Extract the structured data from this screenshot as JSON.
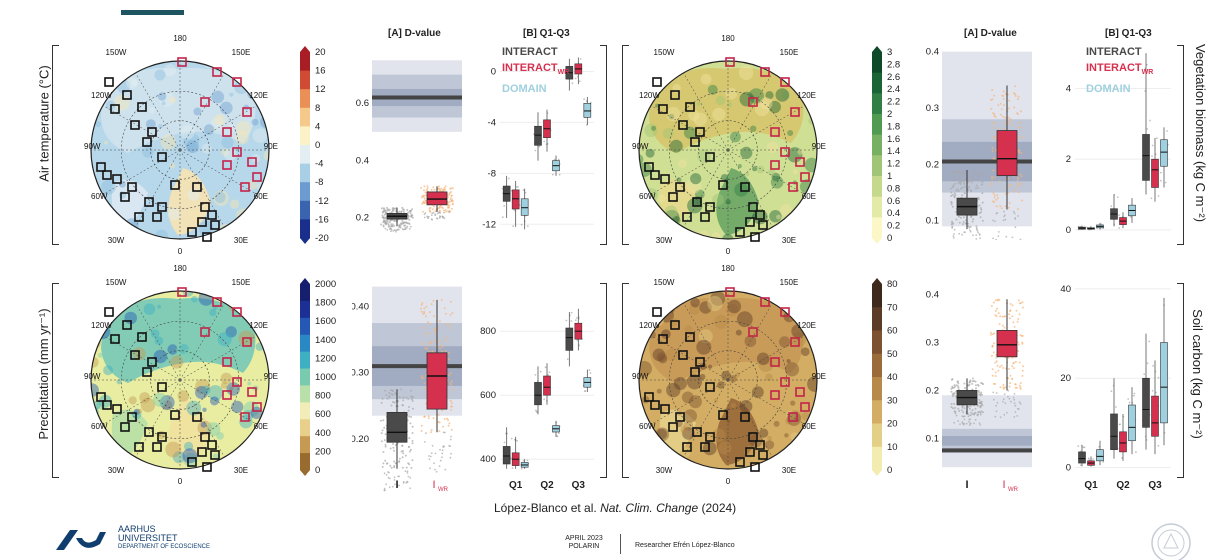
{
  "citation": {
    "authors": "López-Blanco et al.",
    "journal": "Nat. Clim. Change",
    "year": "(2024)"
  },
  "footer": {
    "org_line1": "AARHUS",
    "org_line2": "UNIVERSITET",
    "org_line3": "DEPARTMENT OF ECOSCIENCE",
    "date": "APRIL 2023",
    "event": "POLARIN",
    "presenter": "Researcher Efrén López-Blanco"
  },
  "map_labels": {
    "deg180": "180",
    "deg0": "0",
    "w150": "150W",
    "e150": "150E",
    "w120": "120W",
    "e120": "120E",
    "w90": "90W",
    "e90": "90E",
    "w60": "60W",
    "e60": "60E",
    "w30": "30W",
    "e30": "30E"
  },
  "panel_titles": {
    "dvalue": "[A] D-value",
    "q": "[B] Q1-Q3"
  },
  "legend": {
    "interact": "INTERACT",
    "interact_wr_main": "INTERACT",
    "interact_wr_sub": "WR",
    "domain": "DOMAIN"
  },
  "x_labels": {
    "I": "I",
    "Iwr_main": "I",
    "Iwr_sub": "WR",
    "q1": "Q1",
    "q2": "Q2",
    "q3": "Q3"
  },
  "colors": {
    "interact": "#4a4a4a",
    "interact_wr": "#d6304f",
    "domain": "#9fd0e0",
    "scatter_gray": "#a8a8a8",
    "scatter_orange": "#f6b57a",
    "band_light": "#d9dde8",
    "band_mid": "#b7bfd1",
    "band_dark": "#9aa4bc",
    "line_dark": "#444444"
  },
  "chart_data": [
    {
      "id": "air-temp-colorbar",
      "type": "colorbar",
      "row_label": "Air temperature (°C)",
      "ticks": [
        "20",
        "16",
        "12",
        "8",
        "4",
        "0",
        "-4",
        "-8",
        "-12",
        "-16",
        "-20"
      ],
      "range": [
        -20,
        20
      ],
      "colors": [
        "#1a2f8c",
        "#3a63b0",
        "#6b9bd0",
        "#a9cfe6",
        "#e3eef2",
        "#fbf3c7",
        "#f4c98a",
        "#ea8f55",
        "#d04b34",
        "#a81e24"
      ]
    },
    {
      "id": "air-temp-dvalue",
      "type": "box",
      "ylim": [
        0.15,
        0.8
      ],
      "yticks": [
        "0.6",
        "0.4",
        "0.2"
      ],
      "ytick_values": [
        0.6,
        0.4,
        0.2
      ],
      "bands": [
        [
          0.5,
          0.75
        ],
        [
          0.55,
          0.7
        ],
        [
          0.59,
          0.65
        ]
      ],
      "line": 0.62,
      "boxes": [
        {
          "label": "I",
          "min": 0.17,
          "q1": 0.195,
          "median": 0.205,
          "q3": 0.215,
          "max": 0.235
        },
        {
          "label": "IWR",
          "min": 0.22,
          "q1": 0.245,
          "median": 0.265,
          "q3": 0.29,
          "max": 0.31
        }
      ]
    },
    {
      "id": "air-temp-q",
      "type": "box",
      "ylim": [
        -13,
        2
      ],
      "yticks": [
        "0",
        "-4",
        "-8",
        "-12"
      ],
      "ytick_values": [
        0,
        -4,
        -8,
        -12
      ],
      "boxes": [
        {
          "group": "Q1",
          "series": "INTERACT",
          "min": -11.5,
          "q1": -10.2,
          "median": -9.6,
          "q3": -9.0,
          "max": -8.2
        },
        {
          "group": "Q1",
          "series": "INTERACT_WR",
          "min": -12.2,
          "q1": -10.8,
          "median": -10.0,
          "q3": -9.3,
          "max": -8.6
        },
        {
          "group": "Q1",
          "series": "DOMAIN",
          "min": -12.4,
          "q1": -11.3,
          "median": -10.7,
          "q3": -10.0,
          "max": -9.2
        },
        {
          "group": "Q2",
          "series": "INTERACT",
          "min": -7.0,
          "q1": -5.8,
          "median": -5.0,
          "q3": -4.3,
          "max": -3.2
        },
        {
          "group": "Q2",
          "series": "INTERACT_WR",
          "min": -6.3,
          "q1": -5.2,
          "median": -4.5,
          "q3": -3.8,
          "max": -3.0
        },
        {
          "group": "Q2",
          "series": "DOMAIN",
          "min": -8.2,
          "q1": -7.8,
          "median": -7.4,
          "q3": -7.0,
          "max": -6.6
        },
        {
          "group": "Q3",
          "series": "INTERACT",
          "min": -1.5,
          "q1": -0.6,
          "median": -0.1,
          "q3": 0.4,
          "max": 1.0
        },
        {
          "group": "Q3",
          "series": "INTERACT_WR",
          "min": -1.0,
          "q1": -0.2,
          "median": 0.2,
          "q3": 0.6,
          "max": 1.1
        },
        {
          "group": "Q3",
          "series": "DOMAIN",
          "min": -4.2,
          "q1": -3.6,
          "median": -3.1,
          "q3": -2.5,
          "max": -2.0
        }
      ]
    },
    {
      "id": "vegetation-colorbar",
      "type": "colorbar",
      "row_label": "Vegetation biomass (kg C m⁻²)",
      "ticks": [
        "3",
        "2.8",
        "2.6",
        "2.4",
        "2.2",
        "2",
        "1.8",
        "1.6",
        "1.4",
        "1.2",
        "1",
        "0.8",
        "0.6",
        "0.4",
        "0.2",
        "0"
      ],
      "range": [
        0,
        3
      ],
      "colors": [
        "#fbf7c6",
        "#e3e9a6",
        "#c4d98b",
        "#9fc676",
        "#77b062",
        "#519a52",
        "#317f44",
        "#1a6436",
        "#0e4a29"
      ]
    },
    {
      "id": "vegetation-dvalue",
      "type": "box",
      "ylim": [
        0.08,
        0.41
      ],
      "yticks": [
        "0.4",
        "0.3",
        "0.2",
        "0.1"
      ],
      "ytick_values": [
        0.4,
        0.3,
        0.2,
        0.1
      ],
      "bands": [
        [
          0.09,
          0.4
        ],
        [
          0.15,
          0.28
        ],
        [
          0.17,
          0.24
        ]
      ],
      "line": 0.205,
      "boxes": [
        {
          "label": "I",
          "min": 0.085,
          "q1": 0.11,
          "median": 0.125,
          "q3": 0.14,
          "max": 0.19
        },
        {
          "label": "IWR",
          "min": 0.12,
          "q1": 0.18,
          "median": 0.21,
          "q3": 0.26,
          "max": 0.34
        }
      ]
    },
    {
      "id": "vegetation-q",
      "type": "box",
      "ylim": [
        -0.2,
        5.2
      ],
      "yticks": [
        "4",
        "2",
        "0"
      ],
      "ytick_values": [
        4,
        2,
        0
      ],
      "boxes": [
        {
          "group": "Q1",
          "series": "INTERACT",
          "min": 0.0,
          "q1": 0.02,
          "median": 0.05,
          "q3": 0.08,
          "max": 0.12
        },
        {
          "group": "Q1",
          "series": "INTERACT_WR",
          "min": 0.0,
          "q1": 0.02,
          "median": 0.04,
          "q3": 0.06,
          "max": 0.1
        },
        {
          "group": "Q1",
          "series": "DOMAIN",
          "min": 0.02,
          "q1": 0.06,
          "median": 0.1,
          "q3": 0.14,
          "max": 0.2
        },
        {
          "group": "Q2",
          "series": "INTERACT",
          "min": 0.1,
          "q1": 0.3,
          "median": 0.45,
          "q3": 0.6,
          "max": 1.0
        },
        {
          "group": "Q2",
          "series": "INTERACT_WR",
          "min": 0.05,
          "q1": 0.15,
          "median": 0.25,
          "q3": 0.35,
          "max": 0.5
        },
        {
          "group": "Q2",
          "series": "DOMAIN",
          "min": 0.2,
          "q1": 0.4,
          "median": 0.55,
          "q3": 0.7,
          "max": 0.9
        },
        {
          "group": "Q3",
          "series": "INTERACT",
          "min": 1.0,
          "q1": 1.4,
          "median": 2.1,
          "q3": 2.7,
          "max": 5.0
        },
        {
          "group": "Q3",
          "series": "INTERACT_WR",
          "min": 0.8,
          "q1": 1.2,
          "median": 1.7,
          "q3": 2.0,
          "max": 2.6
        },
        {
          "group": "Q3",
          "series": "DOMAIN",
          "min": 1.2,
          "q1": 1.8,
          "median": 2.2,
          "q3": 2.55,
          "max": 2.9
        }
      ]
    },
    {
      "id": "precip-colorbar",
      "type": "colorbar",
      "row_label": "Precipitation (mm yr⁻¹)",
      "ticks": [
        "2000",
        "1800",
        "1600",
        "1400",
        "1200",
        "1000",
        "800",
        "600",
        "400",
        "200",
        "0"
      ],
      "range": [
        0,
        2000
      ],
      "colors": [
        "#9a6b2e",
        "#c69a52",
        "#e8d08a",
        "#f1ecb8",
        "#b9e0a8",
        "#79cbb0",
        "#3fb0c4",
        "#2a88c4",
        "#2458b4",
        "#1c2f94",
        "#161e6e"
      ]
    },
    {
      "id": "precip-dvalue",
      "type": "box",
      "ylim": [
        0.15,
        0.44
      ],
      "yticks": [
        "0.40",
        "0.30",
        "0.20"
      ],
      "ytick_values": [
        0.4,
        0.3,
        0.2
      ],
      "bands": [
        [
          0.235,
          0.43
        ],
        [
          0.26,
          0.375
        ],
        [
          0.28,
          0.34
        ]
      ],
      "line": 0.31,
      "boxes": [
        {
          "label": "I",
          "min": 0.155,
          "q1": 0.195,
          "median": 0.21,
          "q3": 0.24,
          "max": 0.275
        },
        {
          "label": "IWR",
          "min": 0.21,
          "q1": 0.245,
          "median": 0.295,
          "q3": 0.33,
          "max": 0.41
        }
      ]
    },
    {
      "id": "precip-q",
      "type": "box",
      "ylim": [
        360,
        960
      ],
      "yticks": [
        "800",
        "600",
        "400"
      ],
      "ytick_values": [
        800,
        600,
        400
      ],
      "boxes": [
        {
          "group": "Q1",
          "series": "INTERACT",
          "min": 370,
          "q1": 385,
          "median": 410,
          "q3": 440,
          "max": 500
        },
        {
          "group": "Q1",
          "series": "INTERACT_WR",
          "min": 370,
          "q1": 380,
          "median": 400,
          "q3": 420,
          "max": 470
        },
        {
          "group": "Q1",
          "series": "DOMAIN",
          "min": 370,
          "q1": 375,
          "median": 382,
          "q3": 390,
          "max": 400
        },
        {
          "group": "Q2",
          "series": "INTERACT",
          "min": 540,
          "q1": 570,
          "median": 600,
          "q3": 640,
          "max": 690
        },
        {
          "group": "Q2",
          "series": "INTERACT_WR",
          "min": 570,
          "q1": 600,
          "median": 625,
          "q3": 660,
          "max": 700
        },
        {
          "group": "Q2",
          "series": "DOMAIN",
          "min": 470,
          "q1": 485,
          "median": 495,
          "q3": 505,
          "max": 520
        },
        {
          "group": "Q3",
          "series": "INTERACT",
          "min": 690,
          "q1": 740,
          "median": 780,
          "q3": 810,
          "max": 860
        },
        {
          "group": "Q3",
          "series": "INTERACT_WR",
          "min": 740,
          "q1": 775,
          "median": 800,
          "q3": 825,
          "max": 870
        },
        {
          "group": "Q3",
          "series": "DOMAIN",
          "min": 610,
          "q1": 625,
          "median": 640,
          "q3": 655,
          "max": 680
        }
      ]
    },
    {
      "id": "soil-colorbar",
      "type": "colorbar",
      "row_label": "Soil carbon (kg C m⁻²)",
      "ticks": [
        "80",
        "70",
        "60",
        "50",
        "40",
        "30",
        "20",
        "10",
        "0"
      ],
      "range": [
        0,
        80
      ],
      "colors": [
        "#f3ecb0",
        "#e4cf86",
        "#d2ad63",
        "#b88a4a",
        "#9a6c3a",
        "#7c5231",
        "#5d3c27",
        "#3f281c"
      ]
    },
    {
      "id": "soil-dvalue",
      "type": "box",
      "ylim": [
        0.03,
        0.43
      ],
      "yticks": [
        "0.4",
        "0.3",
        "0.2",
        "0.1"
      ],
      "ytick_values": [
        0.4,
        0.3,
        0.2,
        0.1
      ],
      "bands": [
        [
          0.04,
          0.19
        ],
        [
          0.07,
          0.12
        ],
        [
          0.085,
          0.105
        ]
      ],
      "line": 0.075,
      "boxes": [
        {
          "label": "I",
          "min": 0.15,
          "q1": 0.17,
          "median": 0.185,
          "q3": 0.2,
          "max": 0.225
        },
        {
          "label": "IWR",
          "min": 0.2,
          "q1": 0.27,
          "median": 0.295,
          "q3": 0.325,
          "max": 0.39
        }
      ]
    },
    {
      "id": "soil-q",
      "type": "box",
      "ylim": [
        -1,
        42
      ],
      "yticks": [
        "40",
        "20",
        "0"
      ],
      "ytick_values": [
        40,
        20,
        0
      ],
      "boxes": [
        {
          "group": "Q1",
          "series": "INTERACT",
          "min": 0.3,
          "q1": 1.0,
          "median": 2.0,
          "q3": 3.5,
          "max": 5.0
        },
        {
          "group": "Q1",
          "series": "INTERACT_WR",
          "min": 0.2,
          "q1": 0.5,
          "median": 1.0,
          "q3": 1.5,
          "max": 2.5
        },
        {
          "group": "Q1",
          "series": "DOMAIN",
          "min": 0.5,
          "q1": 1.5,
          "median": 2.5,
          "q3": 4.0,
          "max": 6.0
        },
        {
          "group": "Q2",
          "series": "INTERACT",
          "min": 2.0,
          "q1": 4.0,
          "median": 7.0,
          "q3": 12.0,
          "max": 20.0
        },
        {
          "group": "Q2",
          "series": "INTERACT_WR",
          "min": 1.5,
          "q1": 3.5,
          "median": 5.5,
          "q3": 8.0,
          "max": 12.0
        },
        {
          "group": "Q2",
          "series": "DOMAIN",
          "min": 3.0,
          "q1": 6.0,
          "median": 9.0,
          "q3": 14.0,
          "max": 18.0
        },
        {
          "group": "Q3",
          "series": "INTERACT",
          "min": 4.0,
          "q1": 9.0,
          "median": 13.0,
          "q3": 20.0,
          "max": 30.0
        },
        {
          "group": "Q3",
          "series": "INTERACT_WR",
          "min": 3.0,
          "q1": 7.0,
          "median": 10.0,
          "q3": 16.0,
          "max": 24.0
        },
        {
          "group": "Q3",
          "series": "DOMAIN",
          "min": 5.0,
          "q1": 10.0,
          "median": 18.0,
          "q3": 28.0,
          "max": 38.0
        }
      ]
    }
  ]
}
